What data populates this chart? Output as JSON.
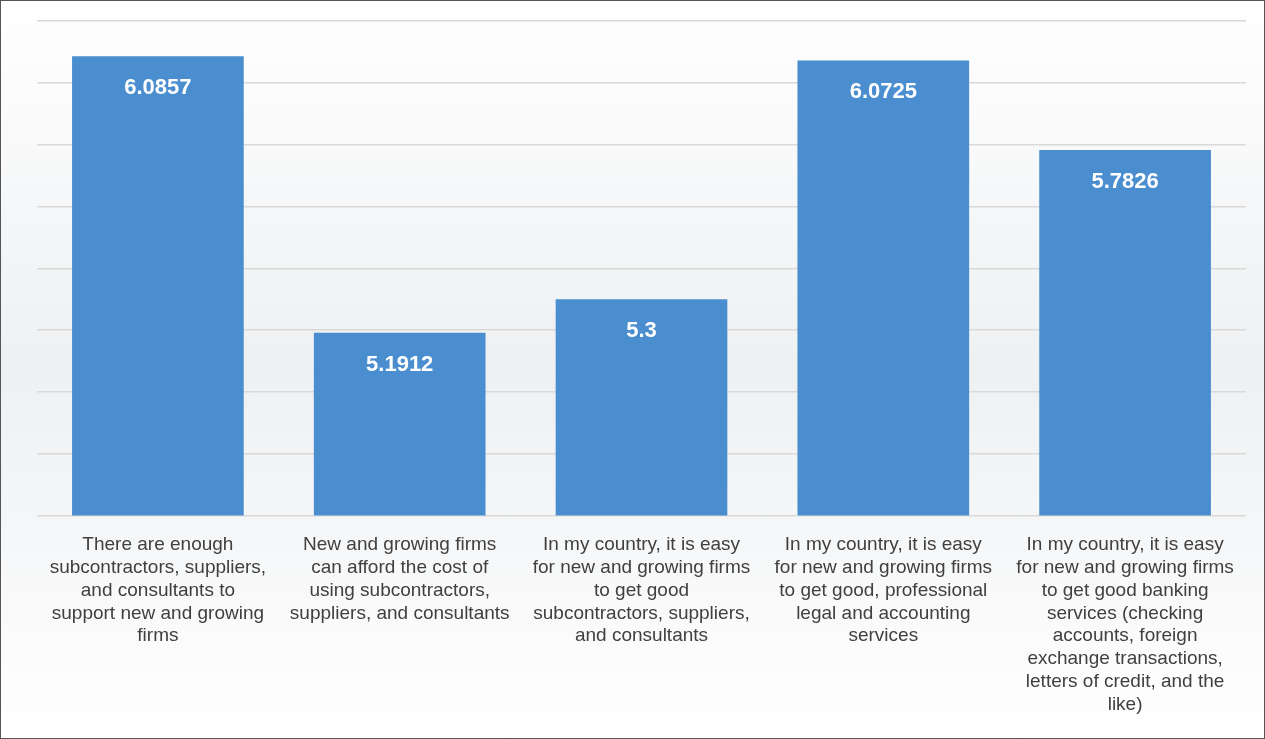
{
  "chart_data": {
    "type": "bar",
    "categories": [
      "There are enough subcontractors, suppliers, and consultants to support new and growing firms",
      "New and growing firms can afford the cost of using subcontractors, suppliers, and consultants",
      "In my country, it is easy for new and growing firms to get good subcontractors, suppliers, and consultants",
      "In my country, it is easy for new and growing firms to get good, professional legal and accounting services",
      "In my country, it is easy for new and growing firms to get good banking services (checking accounts, foreign exchange transactions, letters of credit, and the like)"
    ],
    "values": [
      6.0857,
      5.1912,
      5.3,
      6.0725,
      5.7826
    ],
    "color": "#4a8ed0",
    "ylim": [
      4.6,
      6.2
    ],
    "yticks": [
      {
        "value": 4.6,
        "label": null
      },
      {
        "value": 4.8,
        "label": null
      },
      {
        "value": 5.0,
        "label": null
      },
      {
        "value": 5.2,
        "label": null
      },
      {
        "value": 5.4,
        "label": null
      },
      {
        "value": 5.6,
        "label": null
      },
      {
        "value": 5.8,
        "label": null
      },
      {
        "value": 6.0,
        "label": null
      },
      {
        "value": 6.2,
        "label": null
      }
    ],
    "tick_labels": "x",
    "grid": "y",
    "data_labels": true,
    "legend": false
  }
}
